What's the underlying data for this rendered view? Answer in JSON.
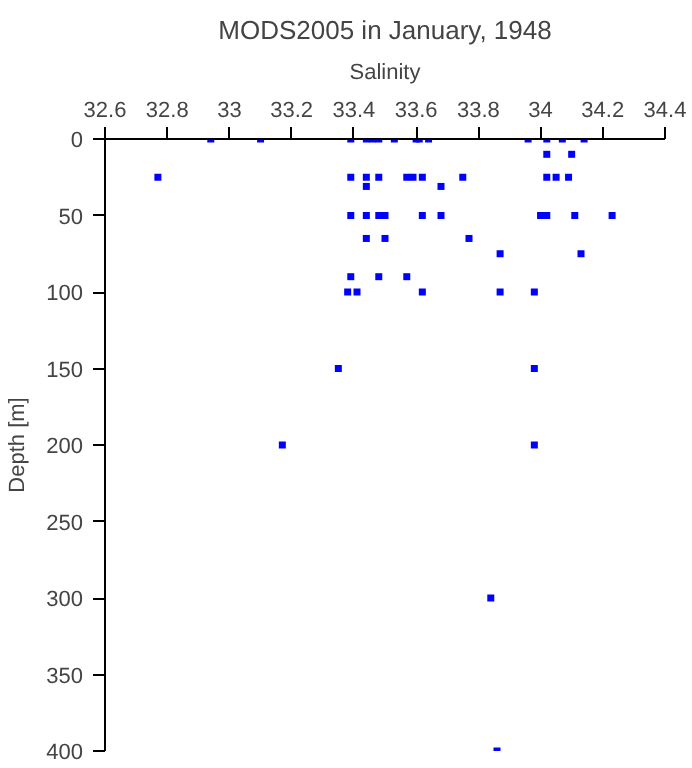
{
  "chart_data": {
    "type": "scatter",
    "title": "MODS2005 in January, 1948",
    "xlabel": "Salinity",
    "ylabel": "Depth [m]",
    "xlim": [
      32.6,
      34.4
    ],
    "xticks": [
      32.6,
      32.8,
      33,
      33.2,
      33.4,
      33.6,
      33.8,
      34,
      34.2,
      34.4
    ],
    "ylim": [
      400,
      0
    ],
    "yticks": [
      0,
      50,
      100,
      150,
      200,
      250,
      300,
      350,
      400
    ],
    "grid": false,
    "marker": "square",
    "series": [
      {
        "color": "#0000ff",
        "x": [
          32.94,
          33.1,
          33.39,
          33.44,
          33.46,
          33.48,
          33.53,
          33.6,
          33.61,
          33.64,
          33.96,
          34.02,
          34.07,
          34.14,
          34.02,
          34.1,
          32.77,
          33.39,
          33.44,
          33.48,
          33.57,
          33.59,
          33.62,
          33.75,
          34.02,
          34.05,
          34.09,
          33.44,
          33.68,
          33.39,
          33.44,
          33.48,
          33.5,
          33.62,
          33.68,
          34.0,
          34.02,
          34.11,
          34.23,
          33.44,
          33.5,
          33.77,
          33.87,
          34.13,
          33.39,
          33.48,
          33.57,
          33.38,
          33.41,
          33.62,
          33.87,
          33.98,
          33.35,
          33.98,
          33.17,
          33.98,
          33.84,
          33.86
        ],
        "values": [
          0,
          0,
          0,
          0,
          0,
          0,
          0,
          0,
          0,
          0,
          0,
          0,
          0,
          0,
          10,
          10,
          25,
          25,
          25,
          25,
          25,
          25,
          25,
          25,
          25,
          25,
          25,
          31,
          31,
          50,
          50,
          50,
          50,
          50,
          50,
          50,
          50,
          50,
          50,
          65,
          65,
          65,
          75,
          75,
          90,
          90,
          90,
          100,
          100,
          100,
          100,
          100,
          150,
          150,
          200,
          200,
          300,
          400
        ]
      }
    ]
  }
}
